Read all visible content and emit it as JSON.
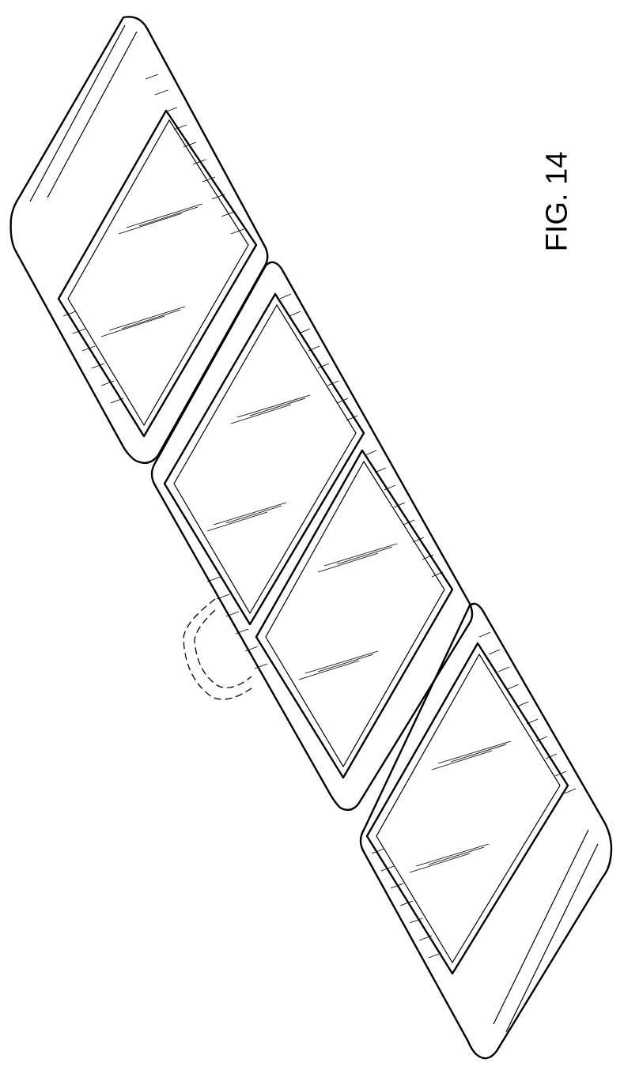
{
  "figure": {
    "label": "FIG. 14"
  }
}
